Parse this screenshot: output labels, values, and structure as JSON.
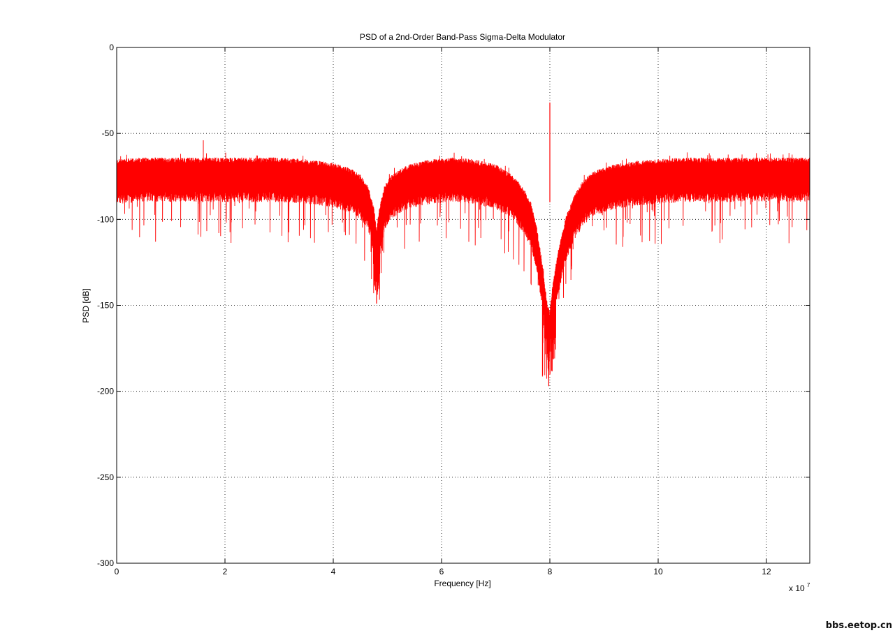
{
  "watermark": "bbs.eetop.cn",
  "colors": {
    "series": "#ff0000",
    "axes": "#000000",
    "background": "#ffffff",
    "grid": "#000000"
  },
  "chart_data": {
    "type": "line",
    "title": "PSD of a 2nd-Order Band-Pass Sigma-Delta Modulator",
    "xlabel": "Frequency [Hz]",
    "ylabel": "PSD [dB]",
    "x_multiplier_label": "x 10",
    "x_multiplier_exponent": "7",
    "xlim": [
      0,
      12.8
    ],
    "ylim": [
      -300,
      0
    ],
    "xticks": [
      0,
      2,
      4,
      6,
      8,
      10,
      12
    ],
    "yticks": [
      0,
      -50,
      -100,
      -150,
      -200,
      -250,
      -300
    ],
    "grid": true,
    "series": [
      {
        "color": "#ff0000",
        "description_points": [
          [
            0.0,
            -77
          ],
          [
            0.5,
            -76
          ],
          [
            1.0,
            -76
          ],
          [
            1.5,
            -76
          ],
          [
            2.0,
            -76
          ],
          [
            2.5,
            -76
          ],
          [
            3.0,
            -76
          ],
          [
            3.5,
            -77
          ],
          [
            4.0,
            -79
          ],
          [
            4.3,
            -82
          ],
          [
            4.5,
            -86
          ],
          [
            4.65,
            -93
          ],
          [
            4.75,
            -105
          ],
          [
            4.8,
            -118
          ],
          [
            4.85,
            -105
          ],
          [
            4.95,
            -92
          ],
          [
            5.1,
            -85
          ],
          [
            5.4,
            -80
          ],
          [
            5.8,
            -77
          ],
          [
            6.2,
            -76
          ],
          [
            6.6,
            -77
          ],
          [
            7.0,
            -80
          ],
          [
            7.3,
            -86
          ],
          [
            7.5,
            -93
          ],
          [
            7.65,
            -102
          ],
          [
            7.75,
            -115
          ],
          [
            7.85,
            -135
          ],
          [
            7.95,
            -160
          ],
          [
            8.0,
            -165
          ],
          [
            8.05,
            -150
          ],
          [
            8.15,
            -130
          ],
          [
            8.3,
            -110
          ],
          [
            8.45,
            -98
          ],
          [
            8.6,
            -90
          ],
          [
            8.8,
            -84
          ],
          [
            9.2,
            -80
          ],
          [
            9.6,
            -78
          ],
          [
            10.0,
            -77
          ],
          [
            10.5,
            -76
          ],
          [
            11.0,
            -76
          ],
          [
            11.5,
            -76
          ],
          [
            12.0,
            -76
          ],
          [
            12.5,
            -76
          ],
          [
            12.8,
            -76
          ]
        ],
        "tone": {
          "x": 8.0,
          "y": -32
        },
        "spur": {
          "x": 1.6,
          "y": -54
        },
        "notch_minima": [
          {
            "x": 4.8,
            "y": -149
          },
          {
            "x": 7.98,
            "y": -197
          }
        ]
      }
    ]
  }
}
